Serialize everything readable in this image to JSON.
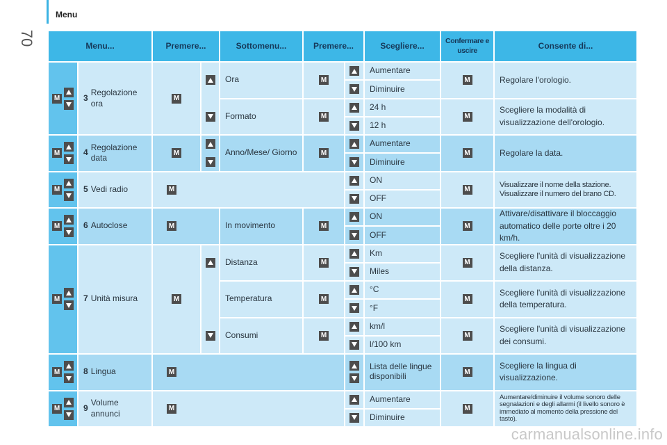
{
  "header": {
    "section": "Menu",
    "page_number": "70"
  },
  "watermark": "carmanualsonline.info",
  "table": {
    "button_label": "M",
    "columns": [
      "Menu...",
      "Premere...",
      "Sottomenu...",
      "Premere...",
      "Scegliere...",
      "Confermare e uscire",
      "Consente di..."
    ],
    "rows": [
      {
        "number": "3",
        "label": "Regolazione ora",
        "submenus": [
          {
            "label": "Ora",
            "options": [
              "Aumentare",
              "Diminuire"
            ],
            "result": "Regolare l'orologio."
          },
          {
            "label": "Formato",
            "options": [
              "24 h",
              "12 h"
            ],
            "result": "Scegliere la modalità di visualizzazione dell'orologio."
          }
        ]
      },
      {
        "number": "4",
        "label": "Regolazione data",
        "submenus": [
          {
            "label": "Anno/Mese/ Giorno",
            "options": [
              "Aumentare",
              "Diminuire"
            ],
            "result": "Regolare la data."
          }
        ]
      },
      {
        "number": "5",
        "label": "Vedi radio",
        "submenus": [
          {
            "options": [
              "ON",
              "OFF"
            ],
            "result": "Visualizzare il nome della stazione. Visualizzare il numero del brano CD."
          }
        ]
      },
      {
        "number": "6",
        "label": "Autoclose",
        "submenu_arrows": false,
        "submenus": [
          {
            "label": "In movimento",
            "options": [
              "ON",
              "OFF"
            ],
            "result": "Attivare/disattivare il bloccaggio automatico delle porte oltre i 20 km/h."
          }
        ]
      },
      {
        "number": "7",
        "label": "Unità misura",
        "submenus": [
          {
            "label": "Distanza",
            "options": [
              "Km",
              "Miles"
            ],
            "result": "Scegliere l'unità di visualizzazione della distanza."
          },
          {
            "label": "Temperatura",
            "options": [
              "°C",
              "°F"
            ],
            "result": "Scegliere l'unità di visualizzazione della temperatura."
          },
          {
            "label": "Consumi",
            "options": [
              "km/l",
              "l/100 km"
            ],
            "result": "Scegliere l'unità di visualizzazione dei consumi."
          }
        ]
      },
      {
        "number": "8",
        "label": "Lingua",
        "submenus": [
          {
            "options": [
              "Lista delle lingue disponibili"
            ],
            "result": "Scegliere la lingua di visualizzazione."
          }
        ]
      },
      {
        "number": "9",
        "label": "Volume annunci",
        "submenus": [
          {
            "options": [
              "Aumentare",
              "Diminuire"
            ],
            "result": "Aumentare/diminuire il volume sonoro delle segnalazioni e degli allarmi (il livello sonoro è immediato al momento della pressione del tasto)."
          }
        ]
      }
    ]
  }
}
